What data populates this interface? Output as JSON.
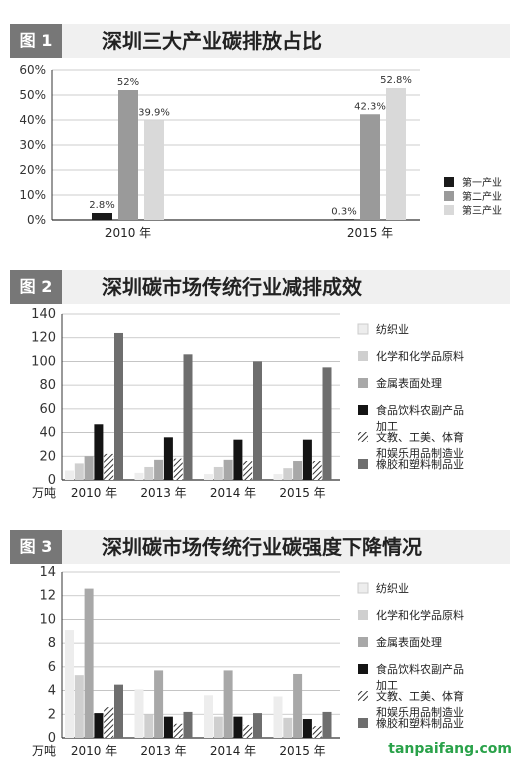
{
  "charts": [
    {
      "fig_no": "图 1",
      "title": "深圳三大产业碳排放占比",
      "chart_data": {
        "type": "bar",
        "categories": [
          "2010 年",
          "2015 年"
        ],
        "series": [
          {
            "name": "第一产业",
            "values": [
              2.8,
              0.3
            ],
            "color": "#1a1a1a"
          },
          {
            "name": "第二产业",
            "values": [
              52,
              42.3
            ],
            "color": "#9a9a9a"
          },
          {
            "name": "第三产业",
            "values": [
              39.9,
              52.8
            ],
            "color": "#d9d9d9"
          }
        ],
        "value_labels": [
          [
            "2.8%",
            "52%",
            "39.9%"
          ],
          [
            "0.3%",
            "42.3%",
            "52.8%"
          ]
        ],
        "y_ticks": [
          "0%",
          "10%",
          "20%",
          "30%",
          "40%",
          "50%",
          "60%"
        ],
        "ylim": [
          0,
          60
        ],
        "grid": true,
        "legend": "right"
      }
    },
    {
      "fig_no": "图 2",
      "title": "深圳碳市场传统行业减排成效",
      "chart_data": {
        "type": "bar",
        "unit_label": "万吨",
        "categories": [
          "2010 年",
          "2013 年",
          "2014 年",
          "2015 年"
        ],
        "series": [
          {
            "name": "纺织业",
            "values": [
              8,
              6,
              5,
              5
            ],
            "color": "#ededed"
          },
          {
            "name": "化学和化学品原料",
            "values": [
              14,
              11,
              11,
              10
            ],
            "color": "#cfcfcf"
          },
          {
            "name": "金属表面处理",
            "values": [
              20,
              17,
              17,
              16
            ],
            "color": "#a8a8a8"
          },
          {
            "name": "食品饮料农副产品加工",
            "values": [
              47,
              36,
              34,
              34
            ],
            "color": "#141414"
          },
          {
            "name": "文教、工美、体育和娱乐用品制造业",
            "values": [
              22,
              18,
              16,
              16
            ],
            "color": "hatch"
          },
          {
            "name": "橡胶和塑料制品业",
            "values": [
              124,
              106,
              100,
              95
            ],
            "color": "#6e6e6e"
          }
        ],
        "y_ticks": [
          "0",
          "20",
          "40",
          "60",
          "80",
          "100",
          "120",
          "140"
        ],
        "ylim": [
          0,
          140
        ],
        "grid": true,
        "legend": "right"
      }
    },
    {
      "fig_no": "图 3",
      "title": "深圳碳市场传统行业碳强度下降情况",
      "chart_data": {
        "type": "bar",
        "unit_label": "万吨",
        "categories": [
          "2010 年",
          "2013 年",
          "2014 年",
          "2015 年"
        ],
        "series": [
          {
            "name": "纺织业",
            "values": [
              9.1,
              4.1,
              3.6,
              3.5
            ],
            "color": "#ededed"
          },
          {
            "name": "化学和化学品原料",
            "values": [
              5.3,
              2.0,
              1.8,
              1.7
            ],
            "color": "#cfcfcf"
          },
          {
            "name": "金属表面处理",
            "values": [
              12.6,
              5.7,
              5.7,
              5.4
            ],
            "color": "#a8a8a8"
          },
          {
            "name": "食品饮料农副产品加工",
            "values": [
              2.1,
              1.8,
              1.8,
              1.6
            ],
            "color": "#141414"
          },
          {
            "name": "文教、工美、体育和娱乐用品制造业",
            "values": [
              2.6,
              1.2,
              1.1,
              1.0
            ],
            "color": "hatch"
          },
          {
            "name": "橡胶和塑料制品业",
            "values": [
              4.5,
              2.2,
              2.1,
              2.2
            ],
            "color": "#6e6e6e"
          }
        ],
        "y_ticks": [
          "0",
          "2",
          "4",
          "6",
          "8",
          "10",
          "12",
          "14"
        ],
        "ylim": [
          0,
          14
        ],
        "grid": true,
        "legend": "right"
      }
    }
  ],
  "watermark": "tanpaifang.com"
}
